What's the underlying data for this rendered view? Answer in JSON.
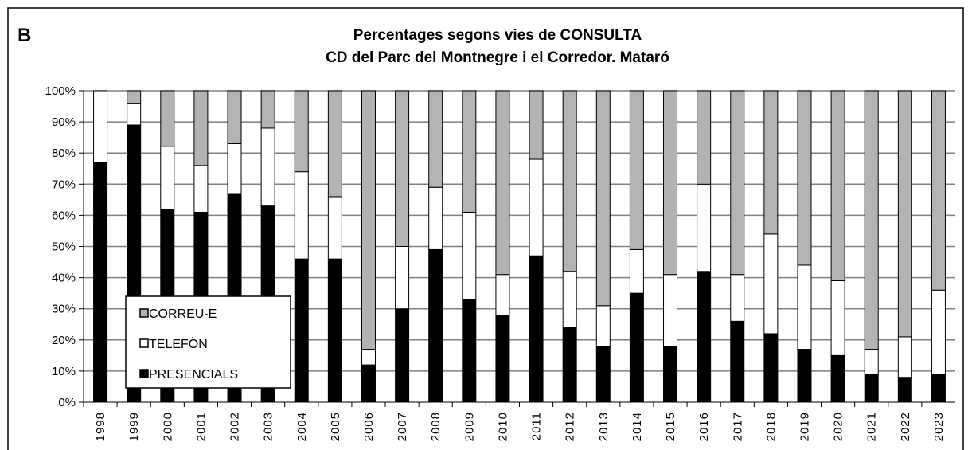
{
  "chart_data": {
    "type": "stacked_bar",
    "panel_label": "B",
    "title": "Percentages segons vies de CONSULTA",
    "subtitle": "CD del Parc del Montnegre i el Corredor. Mataró",
    "categories": [
      "1998",
      "1999",
      "2000",
      "2001",
      "2002",
      "2003",
      "2004",
      "2005",
      "2006",
      "2007",
      "2008",
      "2009",
      "2010",
      "2011",
      "2012",
      "2013",
      "2014",
      "2015",
      "2016",
      "2017",
      "2018",
      "2019",
      "2020",
      "2021",
      "2022",
      "2023"
    ],
    "series": [
      {
        "name": "PRESENCIALS",
        "color": "#000000",
        "values": [
          77,
          89,
          62,
          61,
          67,
          63,
          46,
          46,
          12,
          30,
          49,
          33,
          28,
          47,
          24,
          18,
          35,
          18,
          42,
          26,
          22,
          17,
          15,
          9,
          8,
          9
        ]
      },
      {
        "name": "TELEFÒN",
        "color": "#ffffff",
        "values": [
          23,
          7,
          20,
          15,
          16,
          25,
          28,
          20,
          5,
          20,
          20,
          28,
          13,
          31,
          18,
          13,
          14,
          23,
          28,
          15,
          32,
          27,
          24,
          8,
          13,
          27
        ]
      },
      {
        "name": "CORREU-E",
        "color": "#b3b3b3",
        "values": [
          0,
          4,
          18,
          24,
          17,
          12,
          26,
          34,
          83,
          50,
          31,
          39,
          59,
          22,
          58,
          69,
          51,
          59,
          30,
          59,
          46,
          56,
          61,
          83,
          79,
          64
        ]
      }
    ],
    "ylim": [
      0,
      100
    ],
    "yticks": [
      {
        "value": 0,
        "label": "0%"
      },
      {
        "value": 10,
        "label": "10%"
      },
      {
        "value": 20,
        "label": "20%"
      },
      {
        "value": 30,
        "label": "30%"
      },
      {
        "value": 40,
        "label": "40%"
      },
      {
        "value": 50,
        "label": "50%"
      },
      {
        "value": 60,
        "label": "60%"
      },
      {
        "value": 70,
        "label": "70%"
      },
      {
        "value": 80,
        "label": "80%"
      },
      {
        "value": 90,
        "label": "90%"
      },
      {
        "value": 100,
        "label": "100%"
      }
    ],
    "grid": true
  }
}
